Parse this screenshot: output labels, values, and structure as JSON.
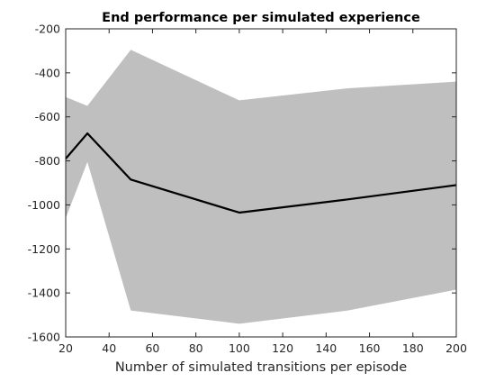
{
  "chart_data": {
    "type": "line",
    "title": "End performance per simulated experience",
    "xlabel": "Number of simulated transitions per episode",
    "ylabel": "",
    "xlim": [
      20,
      200
    ],
    "ylim": [
      -1600,
      -200
    ],
    "x_ticks": [
      20,
      40,
      60,
      80,
      100,
      120,
      140,
      160,
      180,
      200
    ],
    "y_ticks": [
      -200,
      -400,
      -600,
      -800,
      -1000,
      -1200,
      -1400,
      -1600
    ],
    "x_tick_labels": [
      "20",
      "40",
      "60",
      "80",
      "100",
      "120",
      "140",
      "160",
      "180",
      "200"
    ],
    "y_tick_labels": [
      "-200",
      "-400",
      "-600",
      "-800",
      "-1000",
      "-1200",
      "-1400",
      "-1600"
    ],
    "grid": false,
    "series": [
      {
        "x": [
          20,
          30,
          50,
          100,
          150,
          200
        ],
        "values": [
          -790,
          -675,
          -885,
          -1035,
          -975,
          -910
        ],
        "lower": [
          -1060,
          -805,
          -1480,
          -1540,
          -1480,
          -1385
        ],
        "upper": [
          -510,
          -550,
          -295,
          -525,
          -470,
          -440
        ],
        "line_color": "#000000",
        "band_color": "#bfbfbf"
      }
    ]
  }
}
